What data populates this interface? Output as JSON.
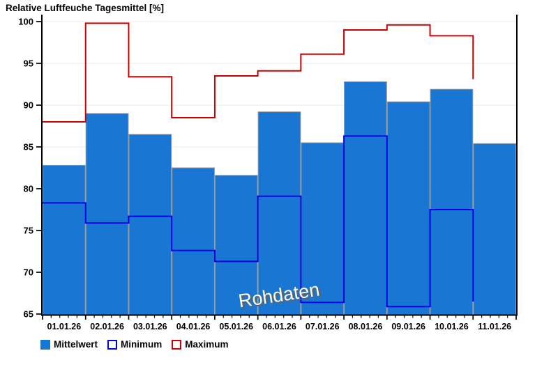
{
  "title": "Relative Luftfeuche Tagesmittel [%]",
  "chart_data": {
    "type": "bar",
    "title": "Relative Luftfeuche Tagesmittel [%]",
    "watermark": "Rohdaten",
    "categories": [
      "01.01.26",
      "02.01.26",
      "03.01.26",
      "04.01.26",
      "05.01.26",
      "06.01.26",
      "07.01.26",
      "08.01.26",
      "09.01.26",
      "10.01.26",
      "11.01.26"
    ],
    "series": [
      {
        "name": "Mittelwert",
        "style": "filled-bar",
        "color": "#1976D2",
        "values": [
          82.8,
          89.0,
          86.5,
          82.5,
          81.6,
          89.2,
          85.5,
          92.8,
          90.4,
          91.9,
          85.4
        ]
      },
      {
        "name": "Minimum",
        "style": "step-outline",
        "color": "#0000E8",
        "values": [
          78.3,
          75.9,
          76.7,
          72.6,
          71.3,
          79.1,
          66.4,
          86.3,
          65.9,
          77.5,
          66.5
        ]
      },
      {
        "name": "Maximum",
        "style": "step-outline",
        "color": "#CC0000",
        "values": [
          88.0,
          99.8,
          93.4,
          88.5,
          93.5,
          94.1,
          96.1,
          99.0,
          99.6,
          98.3,
          93.1
        ]
      }
    ],
    "xlabel": "",
    "ylabel": "",
    "ylim": [
      65,
      100
    ],
    "yticks": [
      65,
      70,
      75,
      80,
      85,
      90,
      95,
      100
    ],
    "grid": true,
    "legend_position": "bottom",
    "colors": {
      "bar_fill": "#1976D2",
      "bar_outline": "#979797",
      "min_line": "#0000E8",
      "max_line": "#CC0000",
      "grid_line": "#EBEBEB",
      "axis": "#000000",
      "watermark_fill": "#FFFFFF",
      "watermark_shadow": "#5A646E"
    }
  }
}
